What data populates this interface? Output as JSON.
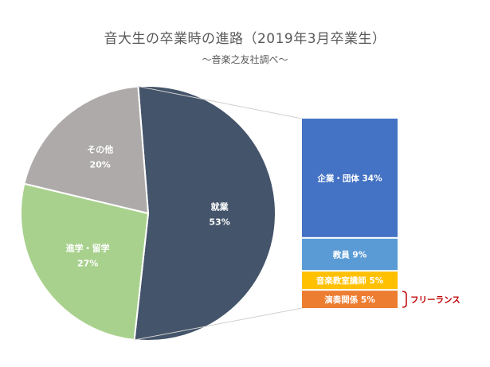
{
  "chart_data": [
    {
      "type": "pie",
      "title": "音大生の卒業時の進路（2019年3月卒業生）",
      "subtitle": "～音楽之友社調べ～",
      "slices": [
        {
          "label": "就業",
          "value": 53,
          "display": "53%",
          "color": "#44546A"
        },
        {
          "label": "進学・留学",
          "value": 27,
          "display": "27%",
          "color": "#A9D18E"
        },
        {
          "label": "その他",
          "value": 20,
          "display": "20%",
          "color": "#AEAAAA"
        }
      ]
    },
    {
      "type": "bar",
      "stacked": true,
      "breakdown_of": "就業",
      "segments": [
        {
          "label": "企業・団体 34%",
          "value": 34,
          "color": "#4472C4"
        },
        {
          "label": "教員 9%",
          "value": 9,
          "color": "#5B9BD5"
        },
        {
          "label": "音楽教室講師 5%",
          "value": 5,
          "color": "#FFC000"
        },
        {
          "label": "演奏関係 5%",
          "value": 5,
          "color": "#ED7D31"
        }
      ],
      "annotation": {
        "label": "フリーランス",
        "color": "#C00000",
        "applies_to": [
          "演奏関係 5%"
        ]
      }
    }
  ]
}
